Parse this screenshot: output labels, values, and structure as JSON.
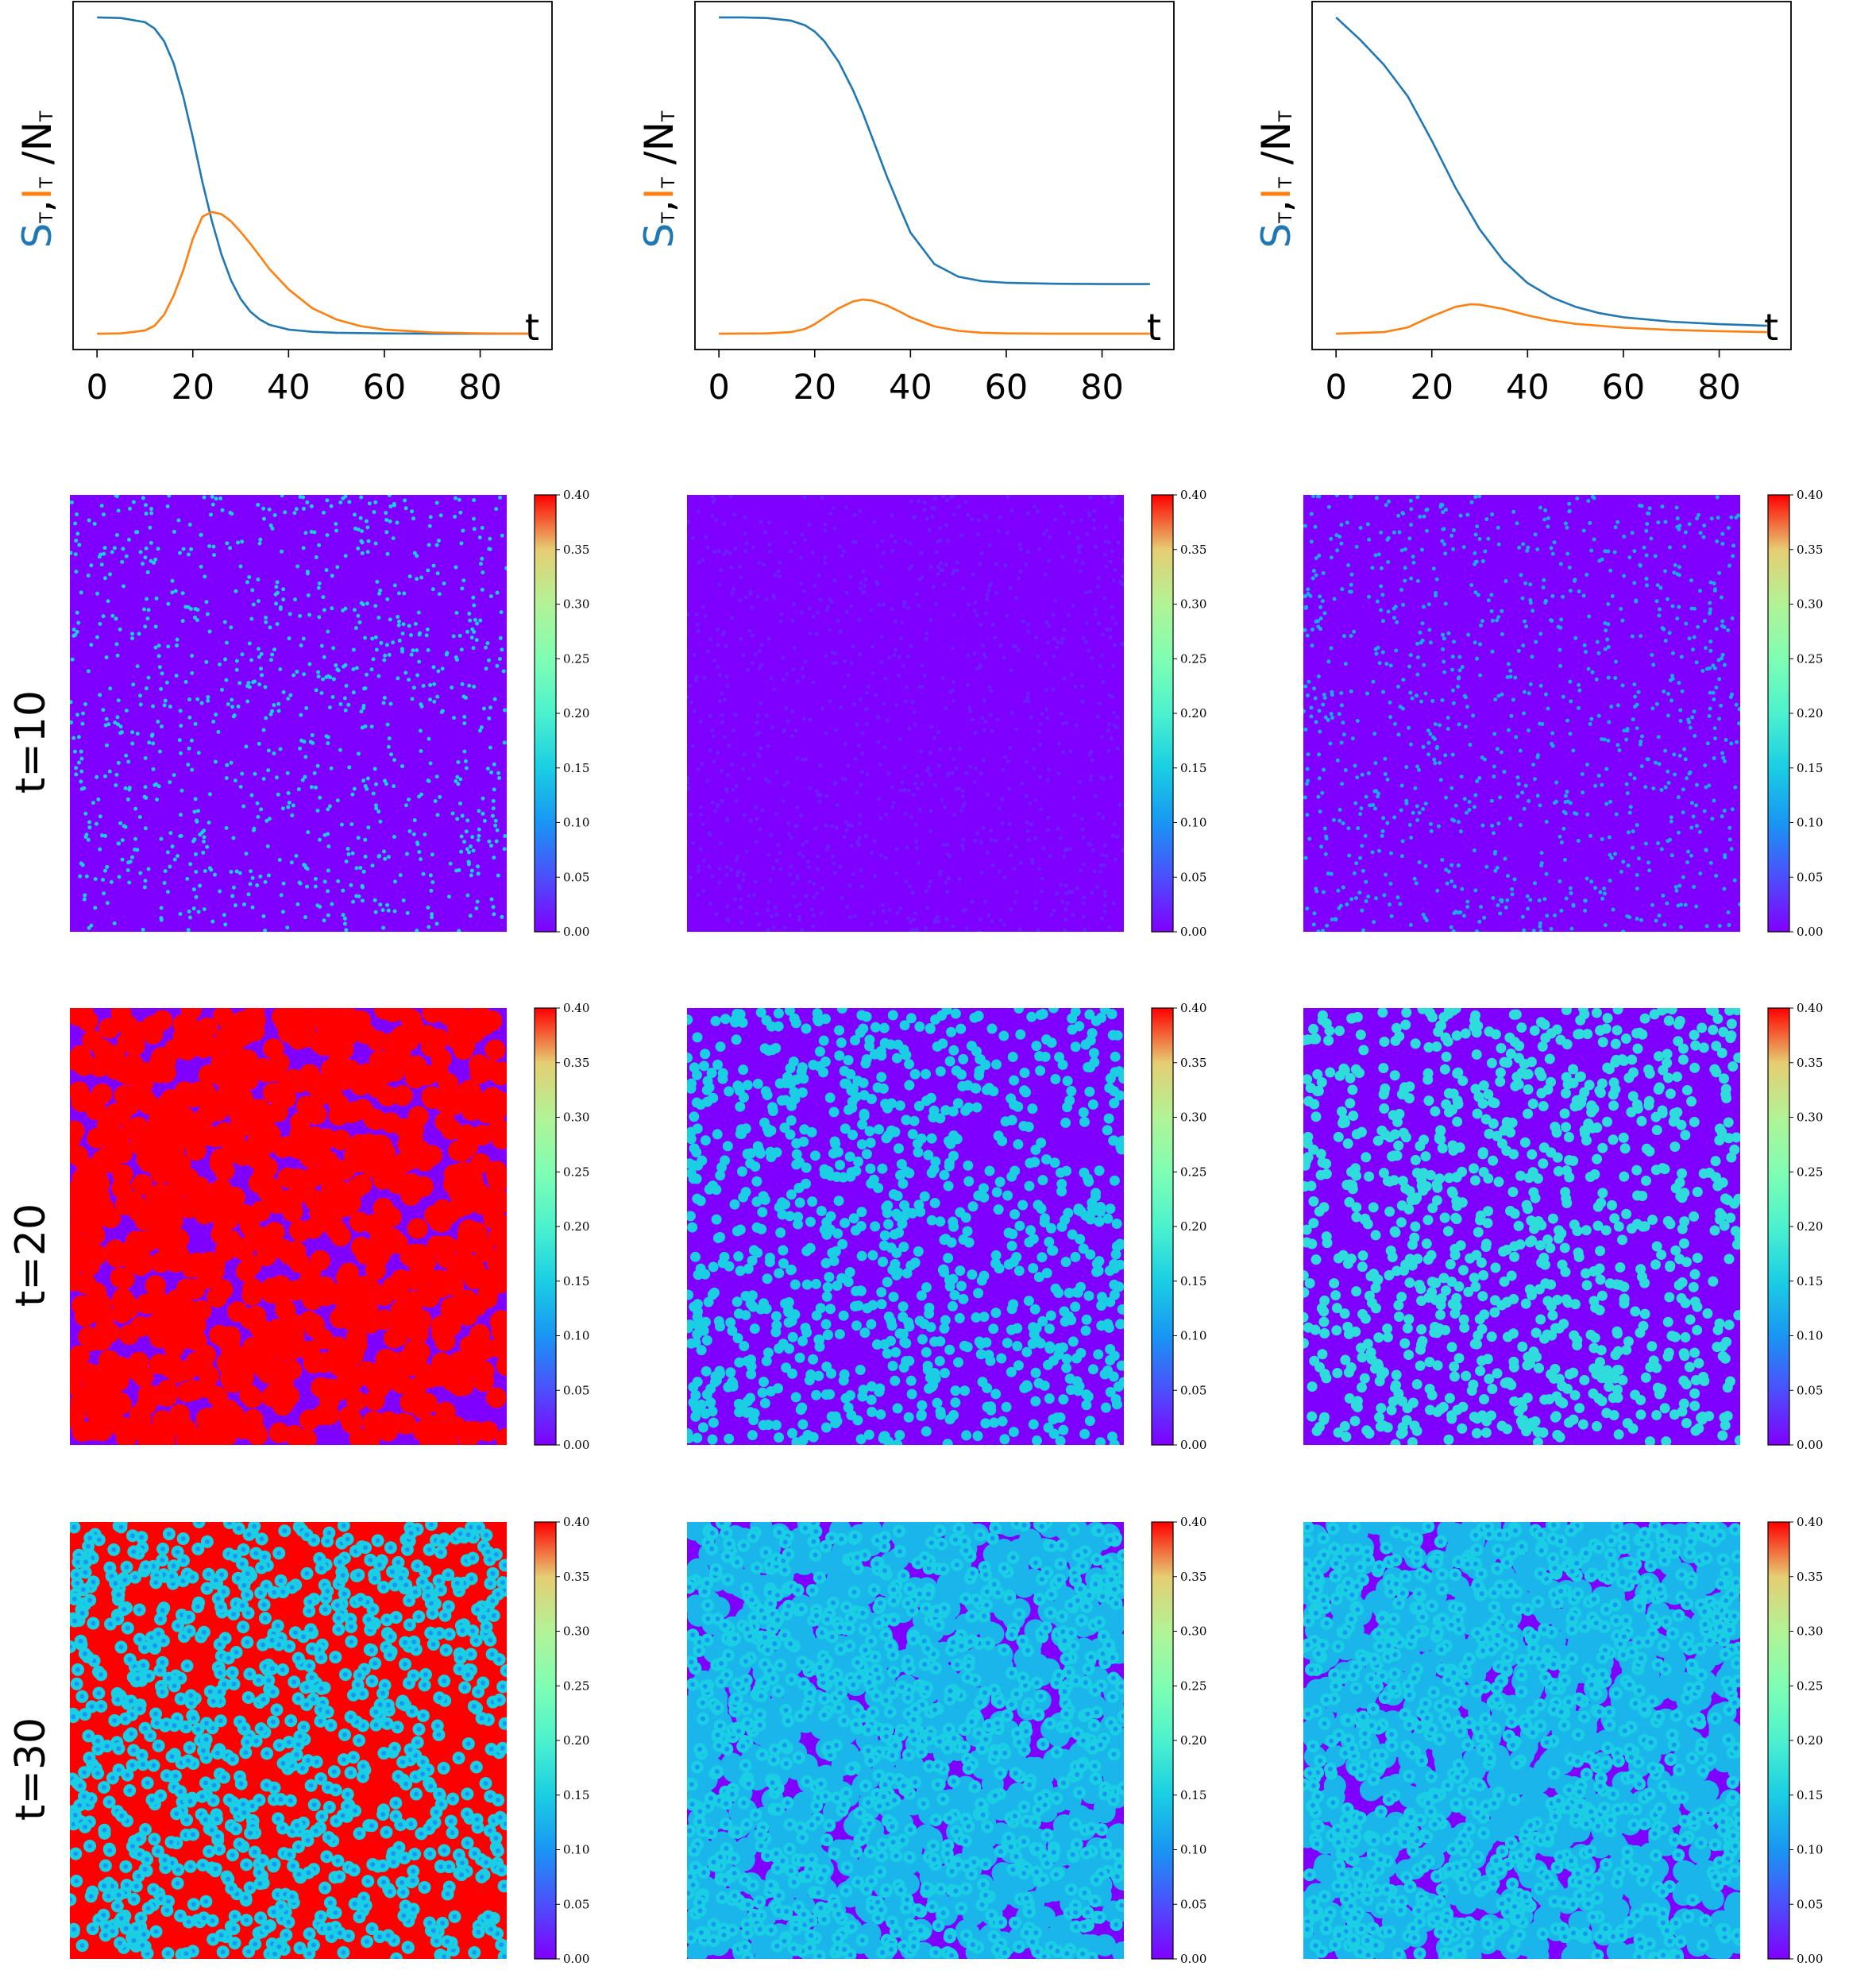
{
  "colors": {
    "S": "#1f77b4",
    "I": "#ff7f0e",
    "frame": "#000000"
  },
  "row_labels": [
    "t=10",
    "t=20",
    "t=30"
  ],
  "colorbar": {
    "ticks": [
      "0.00",
      "0.05",
      "0.10",
      "0.15",
      "0.20",
      "0.25",
      "0.30",
      "0.35",
      "0.40"
    ],
    "range": [
      0,
      0.4
    ],
    "colormap": "rainbow"
  },
  "ylabel": {
    "S": "S",
    "I": "I",
    "sub": "T",
    "rest": "/N",
    "sep": ","
  },
  "chart_data": [
    {
      "type": "line",
      "xlabel": "t",
      "xlim": [
        -5,
        95
      ],
      "xticks": [
        0,
        20,
        40,
        60,
        80
      ],
      "ylim": [
        -0.05,
        1.05
      ],
      "series": [
        {
          "name": "S",
          "x": [
            0,
            5,
            10,
            12,
            14,
            16,
            18,
            20,
            22,
            24,
            26,
            28,
            30,
            32,
            34,
            36,
            40,
            45,
            50,
            60,
            70,
            80,
            90
          ],
          "y": [
            1.0,
            0.998,
            0.985,
            0.965,
            0.925,
            0.855,
            0.75,
            0.62,
            0.48,
            0.355,
            0.25,
            0.168,
            0.11,
            0.07,
            0.045,
            0.028,
            0.013,
            0.006,
            0.003,
            0.001,
            0.0,
            0.0,
            0.0
          ]
        },
        {
          "name": "I",
          "x": [
            0,
            5,
            10,
            12,
            14,
            16,
            18,
            20,
            22,
            24,
            26,
            28,
            30,
            32,
            34,
            36,
            40,
            45,
            50,
            55,
            60,
            70,
            80,
            90
          ],
          "y": [
            0.0,
            0.001,
            0.01,
            0.025,
            0.06,
            0.12,
            0.2,
            0.3,
            0.37,
            0.385,
            0.378,
            0.355,
            0.322,
            0.285,
            0.245,
            0.205,
            0.14,
            0.08,
            0.045,
            0.024,
            0.013,
            0.004,
            0.001,
            0.0
          ]
        }
      ]
    },
    {
      "type": "line",
      "xlabel": "t",
      "xlim": [
        -5,
        95
      ],
      "xticks": [
        0,
        20,
        40,
        60,
        80
      ],
      "ylim": [
        -0.05,
        1.05
      ],
      "series": [
        {
          "name": "S",
          "x": [
            0,
            5,
            10,
            15,
            18,
            20,
            22,
            25,
            28,
            30,
            32,
            35,
            38,
            40,
            45,
            50,
            55,
            60,
            70,
            80,
            90
          ],
          "y": [
            1.0,
            1.0,
            0.998,
            0.99,
            0.975,
            0.955,
            0.925,
            0.86,
            0.77,
            0.7,
            0.62,
            0.5,
            0.39,
            0.32,
            0.22,
            0.18,
            0.166,
            0.161,
            0.158,
            0.157,
            0.157
          ]
        },
        {
          "name": "I",
          "x": [
            0,
            10,
            15,
            18,
            20,
            22,
            25,
            28,
            30,
            32,
            35,
            38,
            40,
            45,
            50,
            55,
            60,
            70,
            80,
            90
          ],
          "y": [
            0.0,
            0.001,
            0.005,
            0.015,
            0.03,
            0.05,
            0.08,
            0.102,
            0.108,
            0.105,
            0.09,
            0.068,
            0.052,
            0.023,
            0.009,
            0.003,
            0.001,
            0.0,
            0.0,
            0.0
          ]
        }
      ]
    },
    {
      "type": "line",
      "xlabel": "t",
      "xlim": [
        -5,
        95
      ],
      "xticks": [
        0,
        20,
        40,
        60,
        80
      ],
      "ylim": [
        -0.05,
        1.05
      ],
      "series": [
        {
          "name": "S",
          "x": [
            0,
            5,
            10,
            15,
            20,
            25,
            30,
            35,
            40,
            45,
            50,
            55,
            60,
            70,
            80,
            90
          ],
          "y": [
            1.0,
            0.93,
            0.85,
            0.75,
            0.61,
            0.46,
            0.33,
            0.23,
            0.16,
            0.115,
            0.085,
            0.065,
            0.052,
            0.038,
            0.03,
            0.025
          ]
        },
        {
          "name": "I",
          "x": [
            0,
            10,
            15,
            20,
            25,
            28,
            30,
            35,
            40,
            45,
            50,
            60,
            70,
            80,
            90
          ],
          "y": [
            0.0,
            0.005,
            0.02,
            0.055,
            0.085,
            0.093,
            0.092,
            0.078,
            0.058,
            0.042,
            0.031,
            0.019,
            0.012,
            0.008,
            0.005
          ]
        }
      ]
    },
    {
      "type": "heatmap",
      "row": "t=10",
      "col": 1,
      "vmin": 0,
      "vmax": 0.4,
      "background": 0.0,
      "spot_value": 0.15,
      "spot_count": 1000,
      "spot_radius": "point"
    },
    {
      "type": "heatmap",
      "row": "t=10",
      "col": 2,
      "vmin": 0,
      "vmax": 0.4,
      "background": 0.0,
      "spot_value": 0.02,
      "spot_count": 1000,
      "spot_radius": "point"
    },
    {
      "type": "heatmap",
      "row": "t=10",
      "col": 3,
      "vmin": 0,
      "vmax": 0.4,
      "background": 0.0,
      "spot_value": 0.12,
      "spot_count": 1000,
      "spot_radius": "point"
    },
    {
      "type": "heatmap",
      "row": "t=20",
      "col": 1,
      "vmin": 0,
      "vmax": 0.4,
      "background": 0.0,
      "spot_value": 0.4,
      "spot_count": 1000,
      "spot_radius": "large"
    },
    {
      "type": "heatmap",
      "row": "t=20",
      "col": 2,
      "vmin": 0,
      "vmax": 0.4,
      "background": 0.0,
      "spot_value": 0.15,
      "spot_count": 1000,
      "spot_radius": "small"
    },
    {
      "type": "heatmap",
      "row": "t=20",
      "col": 3,
      "vmin": 0,
      "vmax": 0.4,
      "background": 0.0,
      "spot_value": 0.17,
      "spot_count": 1000,
      "spot_radius": "small"
    },
    {
      "type": "heatmap",
      "row": "t=30",
      "col": 1,
      "vmin": 0,
      "vmax": 0.4,
      "background": 0.4,
      "spot_value": 0.15,
      "spot_count": 1000,
      "spot_radius": "ring"
    },
    {
      "type": "heatmap",
      "row": "t=30",
      "col": 2,
      "vmin": 0,
      "vmax": 0.4,
      "background": 0.0,
      "spot_value": 0.15,
      "spot_count": 1000,
      "spot_radius": "ring"
    },
    {
      "type": "heatmap",
      "row": "t=30",
      "col": 3,
      "vmin": 0,
      "vmax": 0.4,
      "background": 0.0,
      "spot_value": 0.15,
      "spot_count": 1000,
      "spot_radius": "ring"
    }
  ]
}
